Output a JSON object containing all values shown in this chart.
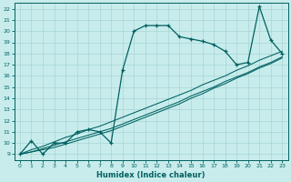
{
  "xlabel": "Humidex (Indice chaleur)",
  "bg_color": "#c8ecec",
  "line_color": "#006060",
  "grid_color": "#a8d4d4",
  "xlim": [
    -0.5,
    23.5
  ],
  "ylim": [
    8.5,
    22.5
  ],
  "xticks": [
    0,
    1,
    2,
    3,
    4,
    5,
    6,
    7,
    8,
    9,
    10,
    11,
    12,
    13,
    14,
    15,
    16,
    17,
    18,
    19,
    20,
    21,
    22,
    23
  ],
  "yticks": [
    9,
    10,
    11,
    12,
    13,
    14,
    15,
    16,
    17,
    18,
    19,
    20,
    21,
    22
  ],
  "main_x": [
    0,
    1,
    2,
    3,
    4,
    5,
    6,
    7,
    8,
    9,
    10,
    11,
    12,
    13,
    14,
    15,
    16,
    17,
    18,
    19,
    20,
    21,
    22,
    23
  ],
  "main_y": [
    9.0,
    10.2,
    9.0,
    10.0,
    10.0,
    11.0,
    11.2,
    11.0,
    10.0,
    16.5,
    20.0,
    20.5,
    20.5,
    20.5,
    19.5,
    19.3,
    19.1,
    18.8,
    18.2,
    17.0,
    17.2,
    22.2,
    19.2,
    18.0
  ],
  "line1_x": [
    0,
    1,
    2,
    3,
    4,
    5,
    6,
    7,
    8,
    9,
    10,
    11,
    12,
    13,
    14,
    15,
    16,
    17,
    18,
    19,
    20,
    21,
    22,
    23
  ],
  "line1_y": [
    9.0,
    9.2,
    9.4,
    9.6,
    9.9,
    10.2,
    10.5,
    10.8,
    11.1,
    11.5,
    11.9,
    12.3,
    12.7,
    13.1,
    13.5,
    14.0,
    14.4,
    14.9,
    15.3,
    15.8,
    16.2,
    16.7,
    17.1,
    17.6
  ],
  "line2_x": [
    0,
    1,
    2,
    3,
    4,
    5,
    6,
    7,
    8,
    9,
    10,
    11,
    12,
    13,
    14,
    15,
    16,
    17,
    18,
    19,
    20,
    21,
    22,
    23
  ],
  "line2_y": [
    9.0,
    9.2,
    9.5,
    9.8,
    10.1,
    10.4,
    10.7,
    11.0,
    11.3,
    11.7,
    12.1,
    12.5,
    12.9,
    13.3,
    13.7,
    14.2,
    14.6,
    15.0,
    15.5,
    15.9,
    16.3,
    16.8,
    17.2,
    17.7
  ],
  "line3_x": [
    0,
    1,
    2,
    3,
    4,
    5,
    6,
    7,
    8,
    9,
    10,
    11,
    12,
    13,
    14,
    15,
    16,
    17,
    18,
    19,
    20,
    21,
    22,
    23
  ],
  "line3_y": [
    9.0,
    9.4,
    9.7,
    10.1,
    10.5,
    10.8,
    11.2,
    11.5,
    11.9,
    12.3,
    12.7,
    13.1,
    13.5,
    13.9,
    14.3,
    14.7,
    15.2,
    15.6,
    16.0,
    16.5,
    16.9,
    17.4,
    17.8,
    18.2
  ]
}
